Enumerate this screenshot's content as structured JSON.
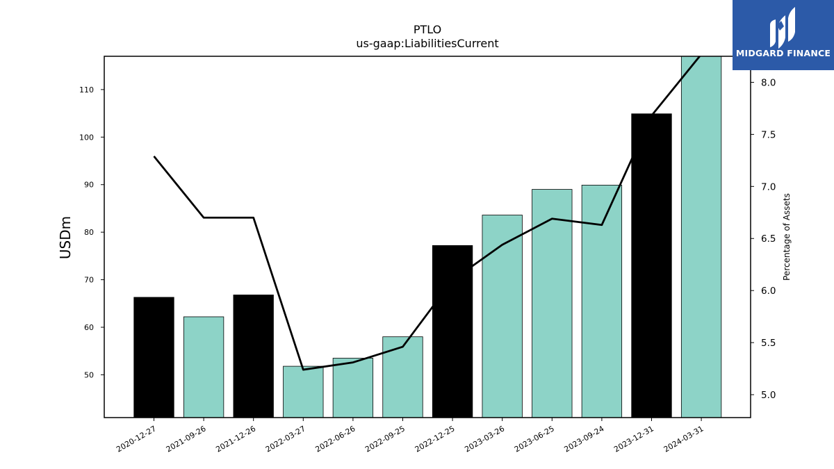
{
  "chart_data": {
    "type": "bar",
    "title": "PTLO",
    "subtitle": "us-gaap:LiabilitiesCurrent",
    "ylabel": "USDm",
    "y2label": "Percentage of Assets",
    "categories": [
      "2020-12-27",
      "2021-09-26",
      "2021-12-26",
      "2022-03-27",
      "2022-06-26",
      "2022-09-25",
      "2022-12-25",
      "2023-03-26",
      "2023-06-25",
      "2023-09-24",
      "2023-12-31",
      "2024-03-31"
    ],
    "series": [
      {
        "type": "bar",
        "axis": "left",
        "values": [
          66.3,
          62.2,
          66.8,
          51.8,
          53.5,
          58.0,
          77.2,
          83.6,
          89.0,
          89.9,
          104.9,
          117.0
        ],
        "colors": [
          "#000000",
          "#8dd3c7",
          "#000000",
          "#8dd3c7",
          "#8dd3c7",
          "#8dd3c7",
          "#000000",
          "#8dd3c7",
          "#8dd3c7",
          "#8dd3c7",
          "#000000",
          "#8dd3c7"
        ]
      },
      {
        "type": "line",
        "axis": "right",
        "values": [
          7.29,
          6.7,
          6.7,
          5.24,
          5.31,
          5.46,
          6.1,
          6.44,
          6.69,
          6.63,
          7.68,
          8.27
        ],
        "color": "#000000"
      }
    ],
    "ylim": [
      41,
      117
    ],
    "y2lim": [
      4.78,
      8.25
    ],
    "yticks": [
      50,
      60,
      70,
      80,
      90,
      100,
      110
    ],
    "y2ticks": [
      "5.0",
      "5.5",
      "6.0",
      "6.5",
      "7.0",
      "7.5",
      "8.0"
    ],
    "grid": false,
    "legend": "none"
  },
  "logo": {
    "text": "MIDGARD FINANCE",
    "color": "#2c5aa8"
  }
}
